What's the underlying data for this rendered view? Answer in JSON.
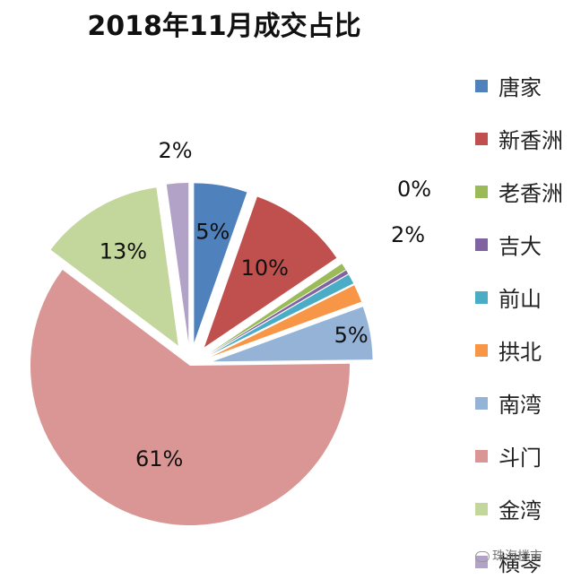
{
  "chart_data": {
    "type": "pie",
    "title": "2018年11月成交占比",
    "categories": [
      "唐家",
      "新香洲",
      "老香洲",
      "吉大",
      "前山",
      "拱北",
      "南湾",
      "斗门",
      "金湾",
      "横琴"
    ],
    "values": [
      5.4,
      10.2,
      0.7,
      0.4,
      1.0,
      1.8,
      5.4,
      60.7,
      12.6,
      2.2
    ],
    "labels": [
      "5%",
      "10%",
      "",
      "0%",
      "",
      "2%",
      "5%",
      "61%",
      "13%",
      "2%"
    ],
    "colors": [
      "#4f81bd",
      "#c0504d",
      "#9bbb59",
      "#8064a2",
      "#4bacc6",
      "#f79646",
      "#95b3d7",
      "#d99694",
      "#c3d69b",
      "#b3a2c7"
    ],
    "legend_position": "right"
  },
  "watermark": "珠海楼市"
}
